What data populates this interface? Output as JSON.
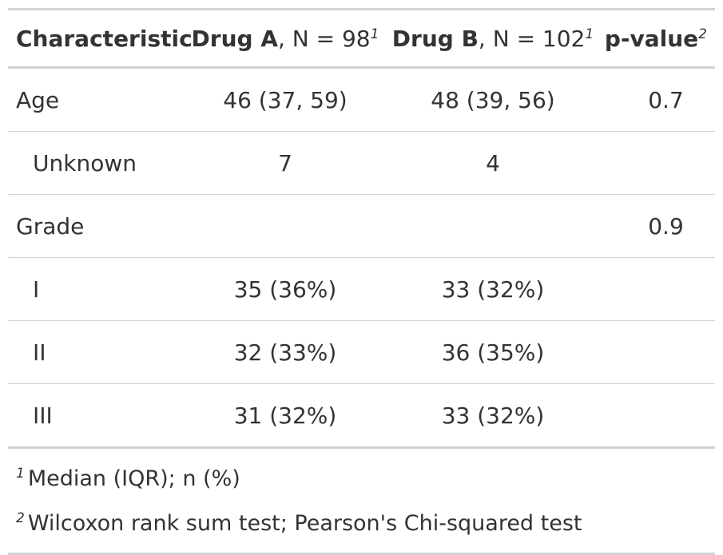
{
  "header": {
    "characteristic": "Characteristic",
    "drug_a_name": "Drug A",
    "drug_a_n": ", N = 98",
    "drug_a_mark": "1",
    "drug_b_name": "Drug B",
    "drug_b_n": ", N = 102",
    "drug_b_mark": "1",
    "pvalue": "p-value",
    "pvalue_mark": "2"
  },
  "rows": [
    {
      "label": "Age",
      "a": "46 (37, 59)",
      "b": "48 (39, 56)",
      "p": "0.7"
    },
    {
      "label": "Unknown",
      "a": "7",
      "b": "4",
      "p": ""
    },
    {
      "label": "Grade",
      "a": "",
      "b": "",
      "p": "0.9"
    },
    {
      "label": "I",
      "a": "35 (36%)",
      "b": "33 (32%)",
      "p": ""
    },
    {
      "label": "II",
      "a": "32 (33%)",
      "b": "36 (35%)",
      "p": ""
    },
    {
      "label": "III",
      "a": "31 (32%)",
      "b": "33 (32%)",
      "p": ""
    }
  ],
  "footnotes": [
    {
      "mark": "1",
      "text": "Median (IQR); n (%)"
    },
    {
      "mark": "2",
      "text": "Wilcoxon rank sum test; Pearson's Chi-squared test"
    }
  ]
}
